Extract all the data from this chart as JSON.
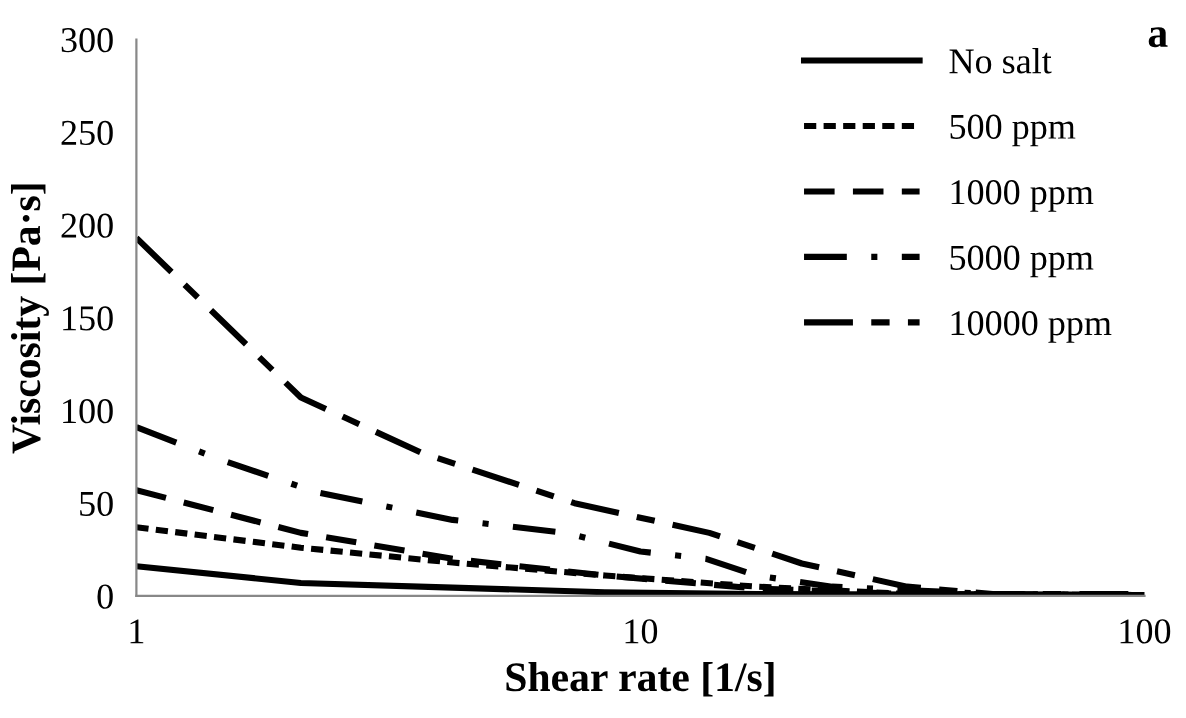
{
  "chart_data": {
    "type": "line",
    "xlabel": "Shear rate [1/s]",
    "ylabel": "Viscosity [Pa·s]",
    "annotations": [
      "a"
    ],
    "log": "x",
    "xlim": [
      1,
      100
    ],
    "xticks": [
      1,
      10,
      100
    ],
    "ylim": [
      0,
      300
    ],
    "yticks": [
      0,
      50,
      100,
      150,
      200,
      250,
      300
    ],
    "grid": false,
    "legend": "right",
    "marker": "none",
    "series": [
      {
        "name": "No salt",
        "color": "#000000",
        "line_style": "solid",
        "x": [
          1,
          2.12,
          4.24,
          8.5,
          17,
          100
        ],
        "values": [
          16,
          7,
          4.5,
          2,
          1,
          0.5
        ]
      },
      {
        "name": "500 ppm",
        "color": "#000000",
        "line_style": "dotted",
        "x": [
          1,
          2.12,
          4.24,
          8.5,
          17,
          34,
          100
        ],
        "values": [
          37,
          26,
          18,
          11,
          5,
          1,
          0.5
        ]
      },
      {
        "name": "1000 ppm",
        "color": "#000000",
        "line_style": "dashed",
        "x": [
          1,
          2.12,
          4.24,
          8.5,
          17,
          34,
          100
        ],
        "values": [
          57,
          34,
          20,
          11,
          4,
          1,
          0.5
        ]
      },
      {
        "name": "5000 ppm",
        "color": "#000000",
        "line_style": "dashdot",
        "x": [
          1,
          1.45,
          2.27,
          4.24,
          7.1,
          10,
          13.5,
          17,
          24,
          50,
          100
        ],
        "values": [
          91,
          74,
          56,
          41,
          34,
          24,
          20,
          11,
          5,
          1,
          0.5
        ]
      },
      {
        "name": "10000 ppm",
        "color": "#000000",
        "line_style": "longdash",
        "x": [
          1,
          2.12,
          3.69,
          7.4,
          13.7,
          20.9,
          33.8,
          50,
          100
        ],
        "values": [
          193,
          107,
          77,
          50,
          34,
          17.5,
          5,
          1,
          1
        ]
      }
    ]
  }
}
